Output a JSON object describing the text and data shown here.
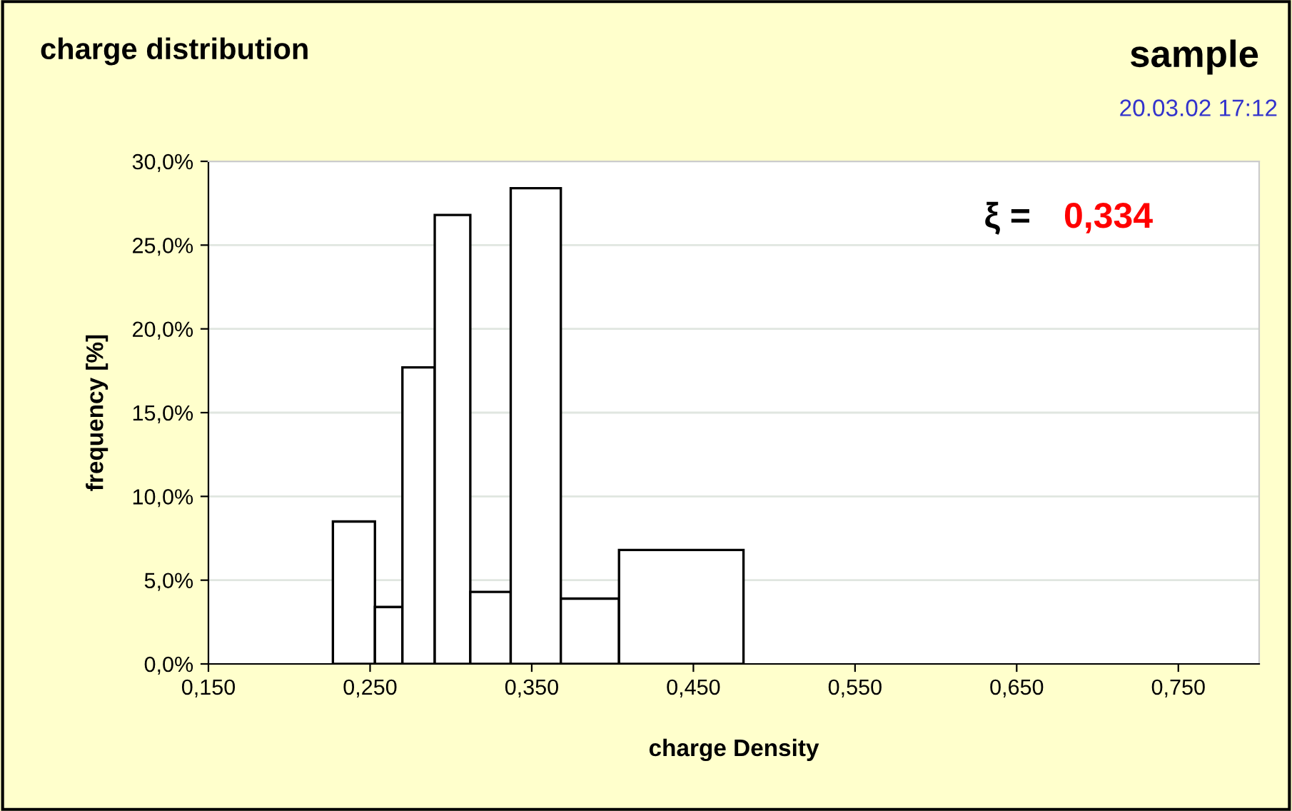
{
  "chart_data": {
    "type": "histogram",
    "title": "charge distribution",
    "subtitle": "sample",
    "xlabel": "charge Density",
    "ylabel": "frequency [%]",
    "annotations": [
      "20.03.02 17:12",
      "ξ =",
      "0,334"
    ],
    "bins": [
      0.227,
      0.253,
      0.27,
      0.29,
      0.312,
      0.337,
      0.368,
      0.404,
      0.481
    ],
    "values": [
      8.5,
      3.4,
      17.7,
      26.8,
      4.3,
      28.4,
      3.9,
      6.8
    ],
    "color": "#ffffff",
    "xlim": [
      0.15,
      0.8
    ],
    "xticks": [
      {
        "value": 0.15,
        "label": "0,150"
      },
      {
        "value": 0.25,
        "label": "0,250"
      },
      {
        "value": 0.35,
        "label": "0,350"
      },
      {
        "value": 0.45,
        "label": "0,450"
      },
      {
        "value": 0.55,
        "label": "0,550"
      },
      {
        "value": 0.65,
        "label": "0,650"
      },
      {
        "value": 0.75,
        "label": "0,750"
      }
    ],
    "ylim": [
      0,
      30
    ],
    "yticks": [
      {
        "value": 0,
        "label": "0,0%"
      },
      {
        "value": 5,
        "label": "5,0%"
      },
      {
        "value": 10,
        "label": "10,0%"
      },
      {
        "value": 15,
        "label": "15,0%"
      },
      {
        "value": 20,
        "label": "20,0%"
      },
      {
        "value": 25,
        "label": "25,0%"
      },
      {
        "value": 30,
        "label": "30,0%"
      }
    ],
    "grid": "y",
    "legend": false
  }
}
